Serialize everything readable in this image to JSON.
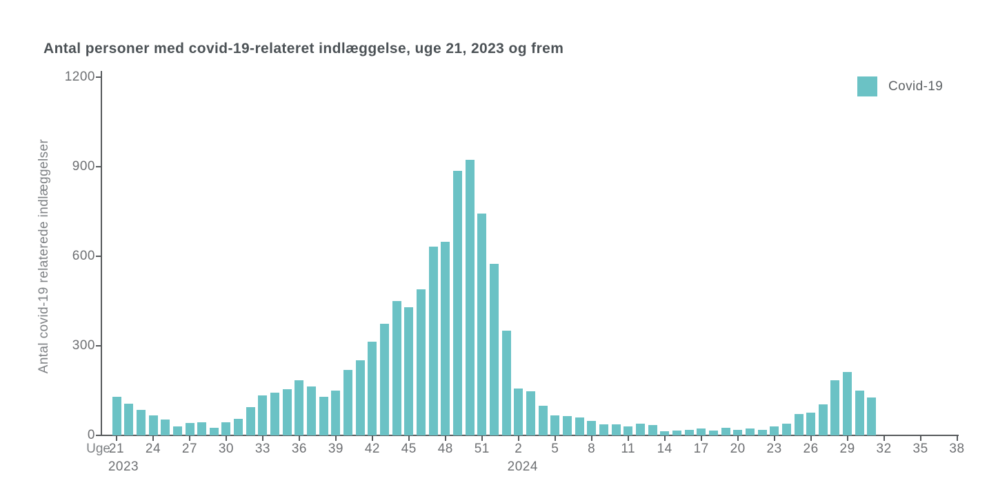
{
  "title": "Antal personer med covid-19-relateret indlæggelse, uge 21, 2023 og frem",
  "legend": {
    "label": "Covid-19"
  },
  "y_axis": {
    "label": "Antal covid-19 relaterede indlæggelser"
  },
  "x_axis": {
    "prefix": "Uge",
    "year_first": "2023",
    "year_second": "2024"
  },
  "colors": {
    "bar": "#6bc2c5",
    "axis": "#55585b",
    "tick_text": "#6d6f72",
    "title_text": "#4c5256"
  },
  "chart_data": {
    "type": "bar",
    "title": "Antal personer med covid-19-relateret indlæggelse, uge 21, 2023 og frem",
    "xlabel": "Uge",
    "ylabel": "Antal covid-19 relaterede indlæggelser",
    "ylim": [
      0,
      1200
    ],
    "y_ticks": [
      0,
      300,
      600,
      900,
      1200
    ],
    "x_tick_labels": [
      "21",
      "24",
      "27",
      "30",
      "33",
      "36",
      "39",
      "42",
      "45",
      "48",
      "51",
      "2",
      "5",
      "8",
      "11",
      "14",
      "17",
      "20",
      "23",
      "26",
      "29",
      "32",
      "35",
      "38"
    ],
    "grid": false,
    "legend": [
      "Covid-19"
    ],
    "legend_position": "top-right",
    "bar_color": "#6bc2c5",
    "series": [
      {
        "name": "Covid-19",
        "segments": [
          {
            "year": 2023,
            "first_week": 21,
            "last_week": 52,
            "values": [
              130,
              107,
              85,
              66,
              53,
              30,
              42,
              45,
              25,
              45,
              56,
              95,
              135,
              143,
              155,
              185,
              164,
              130,
              151,
              219,
              252,
              315,
              375,
              449,
              430,
              490,
              633,
              648,
              887,
              924,
              743,
              574
            ]
          },
          {
            "year": 2024,
            "first_week": 1,
            "last_week": 31,
            "values": [
              352,
              158,
              147,
              100,
              66,
              64,
              61,
              48,
              37,
              37,
              30,
              39,
              34,
              15,
              16,
              18,
              23,
              16,
              25,
              19,
              23,
              19,
              29,
              40,
              71,
              77,
              104,
              184,
              213,
              151,
              127
            ]
          }
        ]
      }
    ]
  }
}
